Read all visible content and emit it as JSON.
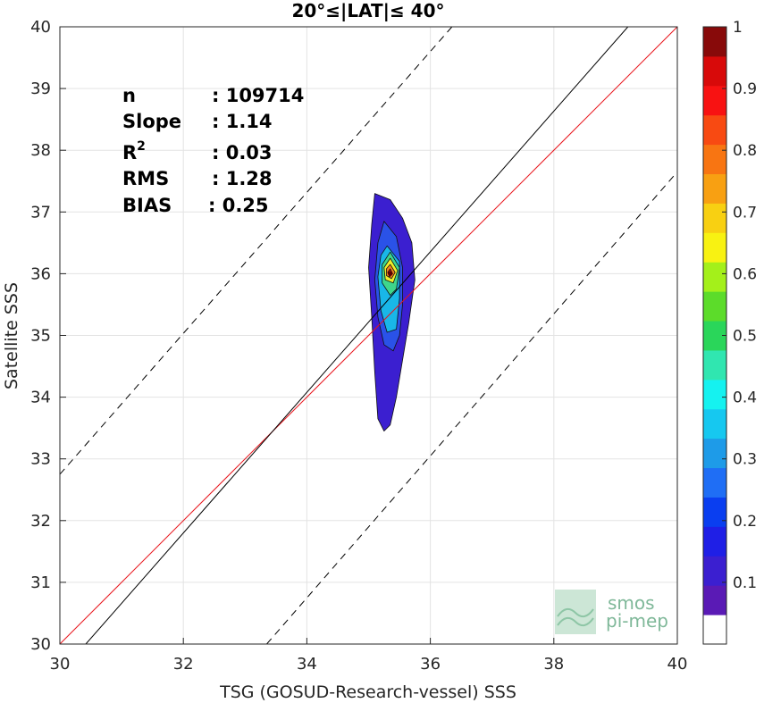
{
  "chart_data": {
    "type": "contour",
    "title": "20°≤|LAT|≤ 40°",
    "xlabel": "TSG (GOSUD-Research-vessel) SSS",
    "ylabel": "Satellite SSS",
    "xlim": [
      30,
      40
    ],
    "ylim": [
      30,
      40
    ],
    "xticks": [
      30,
      32,
      34,
      36,
      38,
      40
    ],
    "yticks": [
      30,
      31,
      32,
      33,
      34,
      35,
      36,
      37,
      38,
      39,
      40
    ],
    "grid": true,
    "stats": [
      {
        "label": "n",
        "value": ": 109714"
      },
      {
        "label": "Slope",
        "value": ": 1.14"
      },
      {
        "label": "R",
        "sup": "2",
        "value": ": 0.03"
      },
      {
        "label": "RMS",
        "value": ": 1.28"
      },
      {
        "label": "BIAS",
        "value": ": 0.25"
      }
    ],
    "reference_lines": [
      {
        "name": "one-to-one",
        "color": "#e8141b",
        "style": "solid",
        "x": [
          30,
          40
        ],
        "y": [
          30,
          40
        ]
      },
      {
        "name": "regression",
        "color": "#000000",
        "style": "solid",
        "x": [
          30.42,
          39.2
        ],
        "y": [
          30,
          40
        ]
      },
      {
        "name": "upper-bound",
        "color": "#000000",
        "style": "dashed",
        "x": [
          30,
          36.35
        ],
        "y": [
          32.75,
          40
        ]
      },
      {
        "name": "lower-bound",
        "color": "#000000",
        "style": "dashed",
        "x": [
          33.35,
          40
        ],
        "y": [
          30,
          37.65
        ]
      }
    ],
    "density_peak": {
      "x": 35.35,
      "y": 36.0
    },
    "contour_levels": [
      {
        "level": 0.05,
        "color": "#3b1fd0",
        "points": [
          [
            35.1,
            37.3
          ],
          [
            35.35,
            37.2
          ],
          [
            35.55,
            36.9
          ],
          [
            35.7,
            36.5
          ],
          [
            35.75,
            35.9
          ],
          [
            35.65,
            35.2
          ],
          [
            35.55,
            34.6
          ],
          [
            35.45,
            34.0
          ],
          [
            35.35,
            33.55
          ],
          [
            35.25,
            33.45
          ],
          [
            35.15,
            33.65
          ],
          [
            35.1,
            34.4
          ],
          [
            35.05,
            35.3
          ],
          [
            35.0,
            36.1
          ],
          [
            35.05,
            36.8
          ]
        ]
      },
      {
        "level": 0.15,
        "color": "#2a52e8",
        "points": [
          [
            35.25,
            36.85
          ],
          [
            35.45,
            36.6
          ],
          [
            35.55,
            36.1
          ],
          [
            35.55,
            35.5
          ],
          [
            35.5,
            35.0
          ],
          [
            35.4,
            34.75
          ],
          [
            35.25,
            34.85
          ],
          [
            35.15,
            35.3
          ],
          [
            35.1,
            35.9
          ],
          [
            35.15,
            36.5
          ]
        ]
      },
      {
        "level": 0.3,
        "color": "#19b7e8",
        "points": [
          [
            35.3,
            36.45
          ],
          [
            35.5,
            36.2
          ],
          [
            35.5,
            35.6
          ],
          [
            35.45,
            35.1
          ],
          [
            35.3,
            35.05
          ],
          [
            35.2,
            35.4
          ],
          [
            35.15,
            35.95
          ],
          [
            35.2,
            36.3
          ]
        ]
      },
      {
        "level": 0.45,
        "color": "#3ed68b",
        "points": [
          [
            35.35,
            36.35
          ],
          [
            35.5,
            36.1
          ],
          [
            35.45,
            35.75
          ],
          [
            35.35,
            35.65
          ],
          [
            35.22,
            35.85
          ],
          [
            35.22,
            36.15
          ]
        ]
      },
      {
        "level": 0.6,
        "color": "#f0ef2a",
        "points": [
          [
            35.35,
            36.25
          ],
          [
            35.47,
            36.05
          ],
          [
            35.4,
            35.85
          ],
          [
            35.27,
            35.9
          ],
          [
            35.25,
            36.1
          ]
        ]
      },
      {
        "level": 0.75,
        "color": "#f58220",
        "points": [
          [
            35.35,
            36.15
          ],
          [
            35.43,
            36.02
          ],
          [
            35.37,
            35.92
          ],
          [
            35.29,
            35.97
          ],
          [
            35.29,
            36.08
          ]
        ]
      },
      {
        "level": 0.9,
        "color": "#a31515",
        "points": [
          [
            35.35,
            36.08
          ],
          [
            35.39,
            36.0
          ],
          [
            35.34,
            35.95
          ],
          [
            35.31,
            36.02
          ]
        ]
      }
    ]
  },
  "colorbar": {
    "colors": [
      "#ffffff",
      "#5a1ab5",
      "#3b1fd0",
      "#1f1fe6",
      "#0a3ef0",
      "#1f6ef5",
      "#1e9be8",
      "#16c8f0",
      "#15f2f0",
      "#30e6b0",
      "#2ad65a",
      "#5cdc2a",
      "#a4f01a",
      "#f8f212",
      "#f8d012",
      "#f8a012",
      "#f87512",
      "#f84a12",
      "#f81212",
      "#d80a0a",
      "#880a0a"
    ],
    "ticks": [
      0.1,
      0.2,
      0.3,
      0.4,
      0.5,
      0.6,
      0.7,
      0.8,
      0.9,
      1
    ],
    "tick_labels": [
      "0.1",
      "0.2",
      "0.3",
      "0.4",
      "0.5",
      "0.6",
      "0.7",
      "0.8",
      "0.9",
      "1"
    ]
  },
  "logo": {
    "line1": "smos",
    "line2": "pi-mep"
  }
}
